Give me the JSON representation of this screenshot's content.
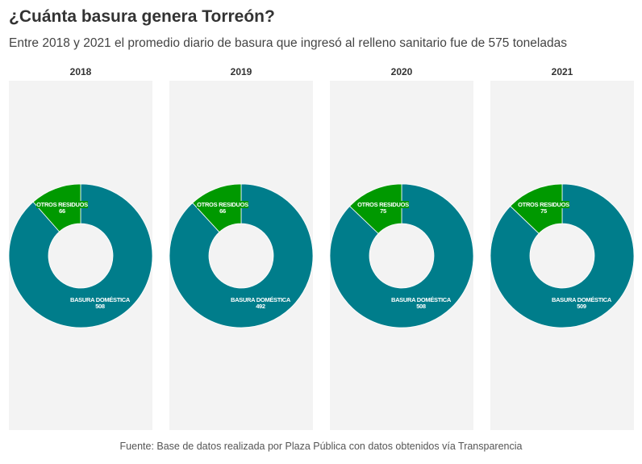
{
  "header": {
    "title": "¿Cuánta basura genera Torreón?",
    "subtitle": "Entre 2018 y 2021 el promedio diario de basura que ingresó al relleno sanitario fue de 575 toneladas"
  },
  "footer": {
    "source": "Fuente: Base de datos realizada por Plaza Pública con datos obtenidos vía Transparencia"
  },
  "colors": {
    "basura_domestica": "#007d8b",
    "otros_residuos": "#009900",
    "panel_background": "#f3f3f3",
    "label_text": "#ffffff"
  },
  "chart_data": [
    {
      "type": "pie",
      "variant": "donut",
      "title": "2018",
      "categories": [
        "BASURA DOMÉSTICA",
        "OTROS RESIDUOS"
      ],
      "values": [
        508,
        66
      ]
    },
    {
      "type": "pie",
      "variant": "donut",
      "title": "2019",
      "categories": [
        "BASURA DOMÉSTICA",
        "OTROS RESIDUOS"
      ],
      "values": [
        492,
        66
      ]
    },
    {
      "type": "pie",
      "variant": "donut",
      "title": "2020",
      "categories": [
        "BASURA DOMÉSTICA",
        "OTROS RESIDUOS"
      ],
      "values": [
        508,
        75
      ]
    },
    {
      "type": "pie",
      "variant": "donut",
      "title": "2021",
      "categories": [
        "BASURA DOMÉSTICA",
        "OTROS RESIDUOS"
      ],
      "values": [
        509,
        75
      ]
    }
  ]
}
